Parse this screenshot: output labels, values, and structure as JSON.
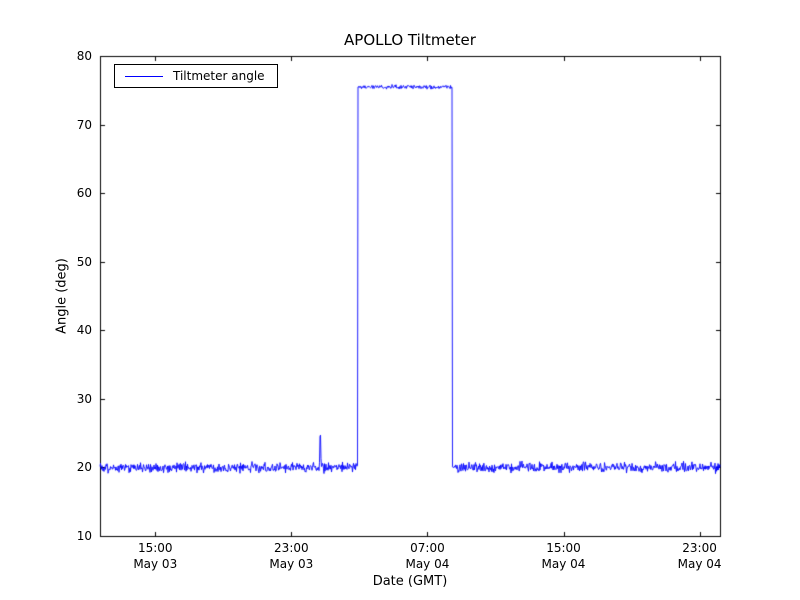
{
  "figure": {
    "background": "#ffffff"
  },
  "chart_data": {
    "type": "line",
    "title": "APOLLO Tiltmeter",
    "xlabel": "Date (GMT)",
    "ylabel": "Angle (deg)",
    "ylim": [
      10,
      80
    ],
    "yticks": [
      10,
      20,
      30,
      40,
      50,
      60,
      70,
      80
    ],
    "xlim_hours": [
      11.75,
      48.2
    ],
    "xticks": [
      {
        "hours": 15,
        "time": "15:00",
        "date": "May 03"
      },
      {
        "hours": 23,
        "time": "23:00",
        "date": "May 03"
      },
      {
        "hours": 31,
        "time": "07:00",
        "date": "May 04"
      },
      {
        "hours": 39,
        "time": "15:00",
        "date": "May 04"
      },
      {
        "hours": 47,
        "time": "23:00",
        "date": "May 04"
      }
    ],
    "grid": false,
    "frame_color": "#000000",
    "legend": {
      "position": "upper left",
      "entries": [
        {
          "label": "Tiltmeter angle",
          "color": "#0000ff"
        }
      ]
    },
    "series": [
      {
        "name": "Tiltmeter angle",
        "color": "#0000ff",
        "baseline_deg": 20,
        "baseline_noise_std_deg": 0.35,
        "plateau_deg": 75.5,
        "plateau_noise_std_deg": 0.15,
        "plateau_start_hours_from_may03_00": 26.9,
        "plateau_end_hours_from_may03_00": 32.45,
        "spike_hours_from_may03_00": 24.7,
        "spike_peak_deg": 26
      }
    ]
  }
}
